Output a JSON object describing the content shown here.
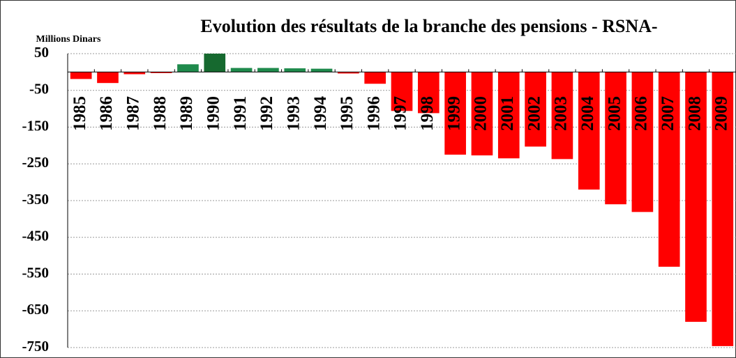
{
  "chart_data": {
    "type": "bar",
    "title": "Evolution des résultats de la branche des pensions - RSNA-",
    "y_axis_label": "Millions Dinars",
    "categories": [
      "1985",
      "1986",
      "1987",
      "1988",
      "1989",
      "1990",
      "1991",
      "1992",
      "1993",
      "1994",
      "1995",
      "1996",
      "1997",
      "1998",
      "1999",
      "2000",
      "2001",
      "2002",
      "2003",
      "2004",
      "2005",
      "2006",
      "2007",
      "2008",
      "2009"
    ],
    "values": [
      -19,
      -30,
      -6,
      -3,
      21,
      50,
      11,
      11,
      10,
      9,
      -4,
      -32,
      -106,
      -112,
      -225,
      -227,
      -235,
      -203,
      -237,
      -320,
      -360,
      -381,
      -530,
      -680,
      -746
    ],
    "colors": [
      "#ff0000",
      "#ff0000",
      "#ff0000",
      "#ff0000",
      "#1f8a4c",
      "#16692f",
      "#1f8a4c",
      "#1f8a4c",
      "#1f8a4c",
      "#1f8a4c",
      "#ff0000",
      "#ff0000",
      "#ff0000",
      "#ff0000",
      "#ff0000",
      "#ff0000",
      "#ff0000",
      "#ff0000",
      "#ff0000",
      "#ff0000",
      "#ff0000",
      "#ff0000",
      "#ff0000",
      "#ff0000",
      "#ff0000"
    ],
    "ylim": [
      -750,
      50
    ],
    "yticks": [
      50,
      -50,
      -150,
      -250,
      -350,
      -450,
      -550,
      -650,
      -750
    ],
    "grid": true
  }
}
